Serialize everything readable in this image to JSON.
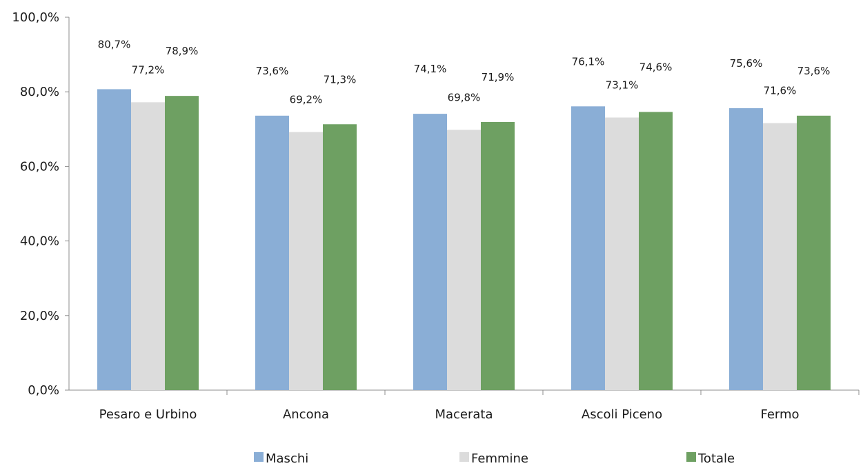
{
  "chart_data": {
    "type": "bar",
    "title": "",
    "xlabel": "",
    "ylabel": "",
    "categories": [
      "Pesaro e Urbino",
      "Ancona",
      "Macerata",
      "Ascoli Piceno",
      "Fermo"
    ],
    "series": [
      {
        "name": "Maschi",
        "values": [
          80.7,
          73.6,
          74.1,
          76.1,
          75.6
        ],
        "labels": [
          "80,7%",
          "73,6%",
          "74,1%",
          "76,1%",
          "75,6%"
        ],
        "color": "#8aaed6"
      },
      {
        "name": "Femmine",
        "values": [
          77.2,
          69.2,
          69.8,
          73.1,
          71.6
        ],
        "labels": [
          "77,2%",
          "69,2%",
          "69,8%",
          "73,1%",
          "71,6%"
        ],
        "color": "#dcdcdc"
      },
      {
        "name": "Totale",
        "values": [
          78.9,
          71.3,
          71.9,
          74.6,
          73.6
        ],
        "labels": [
          "78,9%",
          "71,3%",
          "71,9%",
          "74,6%",
          "73,6%"
        ],
        "color": "#6ea062"
      }
    ],
    "ylim": [
      0,
      100
    ],
    "yticks": [
      0,
      20,
      40,
      60,
      80,
      100
    ],
    "ytick_labels": [
      "0,0%",
      "20,0%",
      "40,0%",
      "60,0%",
      "80,0%",
      "100,0%"
    ],
    "grid": false,
    "legend_position": "bottom"
  }
}
